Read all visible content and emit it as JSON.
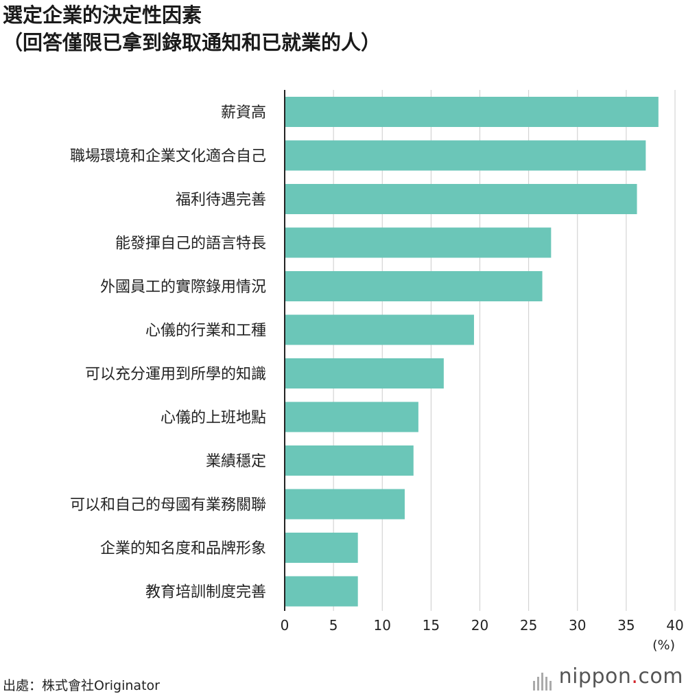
{
  "title_line1": "選定企業的決定性因素",
  "title_line2": "（回答僅限已拿到錄取通知和已就業的人）",
  "source": "出處：株式會社Originator",
  "logo": {
    "name": "nippon",
    "dot": ".",
    "suffix": "com"
  },
  "chart_data": {
    "type": "bar",
    "orientation": "horizontal",
    "categories": [
      "薪資高",
      "職場環境和企業文化適合自己",
      "福利待遇完善",
      "能發揮自己的語言特長",
      "外國員工的實際錄用情況",
      "心儀的行業和工種",
      "可以充分運用到所學的知識",
      "心儀的上班地點",
      "業績穩定",
      "可以和自己的母國有業務關聯",
      "企業的知名度和品牌形象",
      "教育培訓制度完善"
    ],
    "values": [
      38.3,
      37.0,
      36.1,
      27.3,
      26.4,
      19.4,
      16.3,
      13.7,
      13.2,
      12.3,
      7.5,
      7.5
    ],
    "xlim": [
      0,
      40
    ],
    "ticks": [
      "0",
      "5",
      "10",
      "15",
      "20",
      "25",
      "30",
      "35",
      "40"
    ],
    "unit_label": "(%)",
    "bar_color": "#6bc6b8",
    "grid_color": "#cccccc",
    "grid": true
  }
}
